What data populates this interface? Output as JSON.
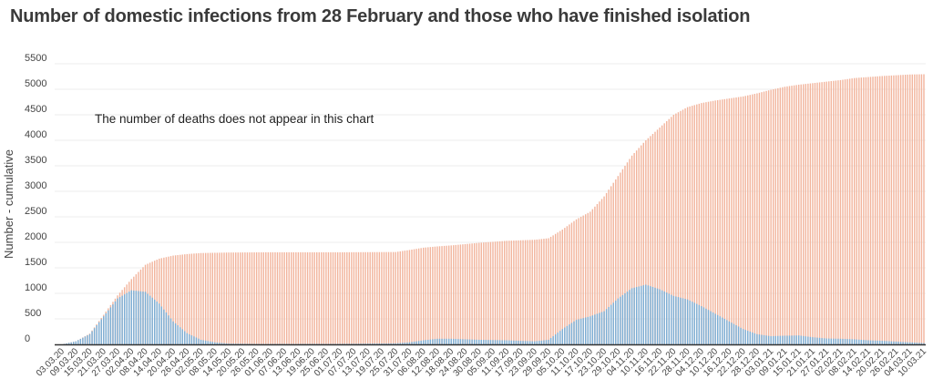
{
  "chart_data": {
    "type": "bar",
    "title": "Number of domestic infections from 28 February and those who have finished isolation",
    "ylabel": "Number - cumulative",
    "annotation": "The number of deaths does not appear in this chart",
    "ylim": [
      0,
      5500
    ],
    "yticks": [
      0,
      500,
      1000,
      1500,
      2000,
      2500,
      3000,
      3500,
      4000,
      4500,
      5000,
      5500
    ],
    "x_tick_labels": [
      "03.03.20",
      "09.03.20",
      "15.03.20",
      "21.03.20",
      "27.03.20",
      "02.04.20",
      "08.04.20",
      "14.04.20",
      "20.04.20",
      "26.04.20",
      "02.05.20",
      "08.05.20",
      "14.05.20",
      "20.05.20",
      "26.05.20",
      "01.06.20",
      "07.06.20",
      "13.06.20",
      "19.06.20",
      "25.06.20",
      "01.07.20",
      "07.07.20",
      "13.07.20",
      "19.07.20",
      "25.07.20",
      "31.07.20",
      "06.08.20",
      "12.08.20",
      "18.08.20",
      "24.08.20",
      "30.08.20",
      "05.09.20",
      "11.09.20",
      "17.09.20",
      "23.09.20",
      "29.09.20",
      "05.10.20",
      "11.10.20",
      "17.10.20",
      "23.10.20",
      "29.10.20",
      "04.11.20",
      "10.11.20",
      "16.11.20",
      "22.11.20",
      "28.11.20",
      "04.12.20",
      "10.12.20",
      "16.12.20",
      "22.12.20",
      "28.12.20",
      "03.01.21",
      "09.01.21",
      "15.01.21",
      "21.01.21",
      "27.01.21",
      "02.02.21",
      "08.02.21",
      "14.02.21",
      "20.02.21",
      "26.02.21",
      "04.03.21",
      "10.03.21"
    ],
    "days_per_tick": 6,
    "series": [
      {
        "color": "#7aaed6",
        "description": "active (lower, blue) bars",
        "keyframes": [
          [
            0,
            0
          ],
          [
            6,
            60
          ],
          [
            12,
            200
          ],
          [
            18,
            550
          ],
          [
            24,
            900
          ],
          [
            30,
            1060
          ],
          [
            36,
            1030
          ],
          [
            42,
            800
          ],
          [
            48,
            450
          ],
          [
            54,
            220
          ],
          [
            60,
            90
          ],
          [
            66,
            40
          ],
          [
            72,
            15
          ],
          [
            84,
            8
          ],
          [
            120,
            10
          ],
          [
            144,
            20
          ],
          [
            150,
            40
          ],
          [
            156,
            80
          ],
          [
            162,
            110
          ],
          [
            168,
            110
          ],
          [
            180,
            90
          ],
          [
            192,
            80
          ],
          [
            204,
            60
          ],
          [
            210,
            90
          ],
          [
            216,
            300
          ],
          [
            222,
            480
          ],
          [
            228,
            550
          ],
          [
            234,
            650
          ],
          [
            240,
            900
          ],
          [
            246,
            1100
          ],
          [
            252,
            1170
          ],
          [
            258,
            1080
          ],
          [
            264,
            950
          ],
          [
            270,
            880
          ],
          [
            276,
            750
          ],
          [
            282,
            600
          ],
          [
            288,
            450
          ],
          [
            294,
            300
          ],
          [
            300,
            200
          ],
          [
            306,
            160
          ],
          [
            312,
            170
          ],
          [
            318,
            175
          ],
          [
            324,
            140
          ],
          [
            330,
            115
          ],
          [
            336,
            110
          ],
          [
            342,
            100
          ],
          [
            348,
            80
          ],
          [
            354,
            70
          ],
          [
            360,
            55
          ],
          [
            366,
            40
          ],
          [
            372,
            25
          ],
          [
            378,
            15
          ],
          [
            384,
            10
          ],
          [
            390,
            8
          ],
          [
            396,
            5
          ],
          [
            402,
            5
          ],
          [
            408,
            5
          ]
        ]
      },
      {
        "color": "#f2b49c",
        "description": "cumulative (total, orange) bars",
        "keyframes": [
          [
            0,
            0
          ],
          [
            6,
            60
          ],
          [
            12,
            210
          ],
          [
            18,
            580
          ],
          [
            24,
            960
          ],
          [
            30,
            1280
          ],
          [
            36,
            1560
          ],
          [
            42,
            1680
          ],
          [
            48,
            1740
          ],
          [
            54,
            1770
          ],
          [
            60,
            1790
          ],
          [
            66,
            1795
          ],
          [
            72,
            1800
          ],
          [
            90,
            1805
          ],
          [
            120,
            1805
          ],
          [
            144,
            1810
          ],
          [
            150,
            1850
          ],
          [
            156,
            1895
          ],
          [
            162,
            1920
          ],
          [
            168,
            1940
          ],
          [
            180,
            1990
          ],
          [
            192,
            2030
          ],
          [
            204,
            2050
          ],
          [
            210,
            2080
          ],
          [
            216,
            2250
          ],
          [
            222,
            2450
          ],
          [
            228,
            2600
          ],
          [
            234,
            2900
          ],
          [
            240,
            3300
          ],
          [
            246,
            3700
          ],
          [
            252,
            4000
          ],
          [
            258,
            4250
          ],
          [
            264,
            4500
          ],
          [
            270,
            4650
          ],
          [
            276,
            4730
          ],
          [
            282,
            4780
          ],
          [
            288,
            4820
          ],
          [
            294,
            4860
          ],
          [
            300,
            4920
          ],
          [
            306,
            4990
          ],
          [
            312,
            5050
          ],
          [
            318,
            5090
          ],
          [
            324,
            5120
          ],
          [
            330,
            5150
          ],
          [
            336,
            5180
          ],
          [
            342,
            5220
          ],
          [
            348,
            5240
          ],
          [
            354,
            5260
          ],
          [
            360,
            5275
          ],
          [
            366,
            5290
          ],
          [
            372,
            5295
          ],
          [
            378,
            5300
          ],
          [
            390,
            5305
          ],
          [
            402,
            5310
          ],
          [
            408,
            5320
          ]
        ]
      }
    ],
    "axis_color": "#333333",
    "grid_color": "#eeeeee"
  }
}
